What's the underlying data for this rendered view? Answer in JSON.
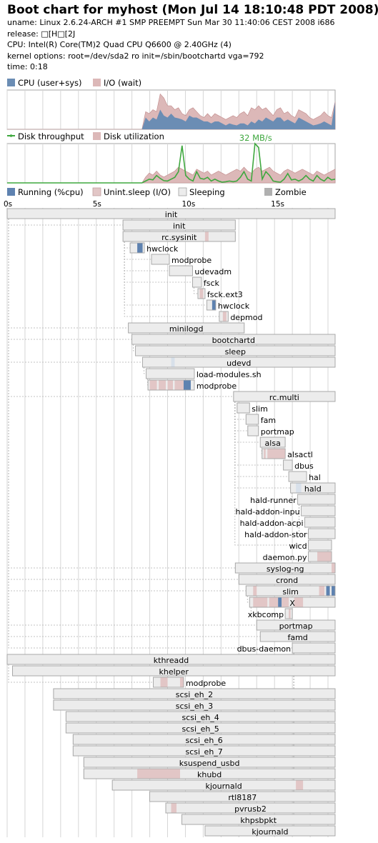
{
  "header": {
    "title": "Boot chart for myhost (Mon Jul 14 18:10:48 PDT 2008)",
    "uname": "uname: Linux 2.6.24-ARCH #1 SMP PREEMPT Sun Mar 30 11:40:06 CEST 2008 i686",
    "release": "release: □[H□[2J",
    "cpu": "CPU: Intel(R) Core(TM)2 Quad CPU    Q6600  @ 2.40GHz (4)",
    "kernel": "kernel options: root=/dev/sda2 ro init=/sbin/bootchartd vga=792",
    "time": "time: 0:18"
  },
  "colors": {
    "cpu": "#6b8db4",
    "io": "#dcb8b8",
    "throughput": "#3fa83f",
    "running": "#5e82b0",
    "uninterruptible": "#e2c6c6",
    "sleeping": "#ececec",
    "zombie": "#b0b0b0",
    "border": "#a6a6a6",
    "grid": "#d6d6d6"
  },
  "chart_data": [
    {
      "type": "area",
      "series": [
        {
          "name": "CPU (user+sys)",
          "values": [
            0,
            0,
            0,
            0,
            0,
            0,
            0,
            0,
            0,
            0,
            0,
            0,
            0,
            0,
            0,
            0,
            0,
            0,
            0,
            0,
            0,
            0,
            0,
            0,
            0,
            0,
            0,
            0,
            0,
            0,
            0,
            0,
            0,
            0,
            0,
            0,
            0,
            0,
            0.3,
            0.2,
            0.3,
            0.25,
            0.5,
            0.35,
            0.3,
            0.4,
            0.3,
            0.28,
            0.25,
            0.2,
            0.35,
            0.3,
            0.3,
            0.25,
            0.2,
            0.2,
            0.15,
            0.2,
            0.2,
            0.15,
            0.1,
            0.15,
            0.12,
            0.1,
            0.15,
            0.15,
            0.1,
            0.2,
            0.15,
            0.25,
            0.2,
            0.3,
            0.25,
            0.2,
            0.3,
            0.3,
            0.2,
            0.25,
            0.2,
            0.15,
            0.3,
            0.25,
            0.2,
            0.15,
            0.1,
            0.12,
            0.15,
            0.2,
            0.15,
            0.1,
            0.7
          ]
        },
        {
          "name": "I/O (wait)",
          "values": [
            0,
            0,
            0,
            0,
            0,
            0,
            0,
            0,
            0,
            0,
            0,
            0,
            0,
            0,
            0,
            0,
            0,
            0,
            0,
            0,
            0,
            0,
            0,
            0,
            0,
            0,
            0,
            0,
            0,
            0,
            0,
            0,
            0,
            0,
            0,
            0,
            0,
            0,
            0.45,
            0.4,
            0.5,
            0.45,
            0.9,
            0.8,
            0.6,
            0.6,
            0.5,
            0.55,
            0.4,
            0.35,
            0.5,
            0.55,
            0.45,
            0.35,
            0.3,
            0.4,
            0.3,
            0.4,
            0.35,
            0.3,
            0.25,
            0.3,
            0.35,
            0.3,
            0.4,
            0.45,
            0.35,
            0.55,
            0.5,
            0.6,
            0.5,
            0.55,
            0.45,
            0.35,
            0.5,
            0.55,
            0.4,
            0.45,
            0.35,
            0.3,
            0.5,
            0.45,
            0.4,
            0.3,
            0.25,
            0.3,
            0.35,
            0.45,
            0.35,
            0.3,
            0.7
          ]
        }
      ]
    },
    {
      "type": "line",
      "max_label": "32 MB/s",
      "series": [
        {
          "name": "Disk throughput",
          "values": [
            0,
            0,
            0,
            0,
            0,
            0,
            0,
            0,
            0,
            0,
            0,
            0,
            0,
            0,
            0,
            0,
            0,
            0,
            0,
            0,
            0,
            0,
            0,
            0,
            0,
            0,
            0,
            0,
            0,
            0,
            0,
            0,
            0,
            0,
            0,
            0,
            0,
            0,
            0.05,
            0.1,
            0.08,
            0.2,
            0.12,
            0.06,
            0.05,
            0.1,
            0.15,
            0.3,
            1.0,
            0.2,
            0.1,
            0.05,
            0.3,
            0.12,
            0.1,
            0.15,
            0.05,
            0.1,
            0.05,
            0.02,
            0.03,
            0.05,
            0.03,
            0.05,
            0.15,
            0.3,
            0.1,
            0.05,
            1.05,
            0.95,
            0.1,
            0.3,
            0.2,
            0.05,
            0.03,
            0.02,
            0.1,
            0.25,
            0.08,
            0.1,
            0.05,
            0.1,
            0.2,
            0.1,
            0.05,
            0.2,
            0.1,
            0.05,
            0.15,
            0.08,
            0.1
          ]
        },
        {
          "name": "Disk utilization",
          "values": [
            0,
            0,
            0,
            0,
            0,
            0,
            0,
            0,
            0,
            0,
            0,
            0,
            0,
            0,
            0,
            0,
            0,
            0,
            0,
            0,
            0,
            0,
            0,
            0,
            0,
            0,
            0,
            0,
            0,
            0,
            0,
            0,
            0,
            0,
            0,
            0,
            0,
            0,
            0.15,
            0.25,
            0.2,
            0.3,
            0.2,
            0.15,
            0.2,
            0.25,
            0.3,
            0.4,
            0.35,
            0.3,
            0.25,
            0.2,
            0.35,
            0.3,
            0.25,
            0.3,
            0.2,
            0.25,
            0.3,
            0.25,
            0.2,
            0.25,
            0.3,
            0.35,
            0.3,
            0.4,
            0.3,
            0.25,
            0.35,
            0.4,
            0.3,
            0.35,
            0.4,
            0.3,
            0.25,
            0.2,
            0.3,
            0.35,
            0.3,
            0.25,
            0.3,
            0.35,
            0.3,
            0.25,
            0.2,
            0.3,
            0.25,
            0.2,
            0.25,
            0.3,
            0.35
          ]
        }
      ]
    },
    {
      "type": "gantt",
      "xlabel": "",
      "xlim": [
        0,
        18.4
      ],
      "ticks": [
        {
          "v": 0,
          "label": "0s"
        },
        {
          "v": 5,
          "label": "5s"
        },
        {
          "v": 10,
          "label": "10s"
        },
        {
          "v": 15,
          "label": "15s"
        }
      ],
      "legend": [
        "Running (%cpu)",
        "Unint.sleep (I/O)",
        "Sleeping",
        "Zombie"
      ],
      "processes": [
        {
          "name": "init",
          "start": 0,
          "end": 18.4,
          "parent": -1,
          "label": "in"
        },
        {
          "name": "init",
          "start": 6.5,
          "end": 12.8,
          "parent": 0,
          "label": "in"
        },
        {
          "name": "rc.sysinit",
          "start": 6.5,
          "end": 12.8,
          "parent": 1,
          "label": "in",
          "segs": [
            [
              11.1,
              11.3,
              "io"
            ]
          ]
        },
        {
          "name": "hwclock",
          "start": 6.9,
          "end": 7.7,
          "parent": 2,
          "label": "right",
          "segs": [
            [
              7.3,
              7.6,
              "cpu"
            ]
          ]
        },
        {
          "name": "modprobe",
          "start": 8.1,
          "end": 9.1,
          "parent": 2,
          "label": "right"
        },
        {
          "name": "udevadm",
          "start": 9.1,
          "end": 10.4,
          "parent": 2,
          "label": "right"
        },
        {
          "name": "fsck",
          "start": 10.4,
          "end": 10.9,
          "parent": 2,
          "label": "right"
        },
        {
          "name": "fsck.ext3",
          "start": 10.7,
          "end": 11.1,
          "parent": 6,
          "label": "right",
          "segs": [
            [
              10.8,
              11.0,
              "io"
            ]
          ]
        },
        {
          "name": "hwclock",
          "start": 11.2,
          "end": 11.7,
          "parent": 2,
          "label": "right",
          "segs": [
            [
              11.5,
              11.7,
              "cpu"
            ]
          ]
        },
        {
          "name": "depmod",
          "start": 11.9,
          "end": 12.4,
          "parent": 2,
          "label": "right",
          "segs": [
            [
              12.1,
              12.3,
              "io"
            ]
          ]
        },
        {
          "name": "minilogd",
          "start": 6.8,
          "end": 13.3,
          "parent": 0,
          "label": "in"
        },
        {
          "name": "bootchartd",
          "start": 7.0,
          "end": 18.4,
          "parent": 0,
          "label": "in"
        },
        {
          "name": "sleep",
          "start": 7.2,
          "end": 18.4,
          "parent": 11,
          "label": "in"
        },
        {
          "name": "udevd",
          "start": 7.6,
          "end": 18.4,
          "parent": 0,
          "label": "in",
          "segs": [
            [
              9.2,
              9.4,
              "sleep2"
            ]
          ]
        },
        {
          "name": "load-modules.sh",
          "start": 7.8,
          "end": 10.5,
          "parent": 13,
          "label": "right"
        },
        {
          "name": "modprobe",
          "start": 7.9,
          "end": 10.5,
          "parent": 14,
          "label": "right",
          "segs": [
            [
              8.0,
              8.4,
              "io"
            ],
            [
              8.5,
              8.9,
              "io"
            ],
            [
              9.0,
              9.3,
              "io"
            ],
            [
              9.4,
              9.9,
              "io"
            ],
            [
              9.9,
              10.3,
              "cpu"
            ]
          ]
        },
        {
          "name": "rc.multi",
          "start": 12.7,
          "end": 18.4,
          "parent": 0,
          "label": "in"
        },
        {
          "name": "slim",
          "start": 12.9,
          "end": 13.6,
          "parent": 16,
          "label": "right"
        },
        {
          "name": "fam",
          "start": 13.4,
          "end": 14.1,
          "parent": 16,
          "label": "right"
        },
        {
          "name": "portmap",
          "start": 13.5,
          "end": 14.1,
          "parent": 16,
          "label": "right"
        },
        {
          "name": "alsa",
          "start": 14.2,
          "end": 15.6,
          "parent": 16,
          "label": "in"
        },
        {
          "name": "alsactl",
          "start": 14.3,
          "end": 15.6,
          "parent": 20,
          "label": "right",
          "segs": [
            [
              14.4,
              14.5,
              "io"
            ],
            [
              14.6,
              15.6,
              "io"
            ]
          ]
        },
        {
          "name": "dbus",
          "start": 15.5,
          "end": 16.0,
          "parent": 16,
          "label": "right"
        },
        {
          "name": "hal",
          "start": 15.8,
          "end": 16.8,
          "parent": 16,
          "label": "right"
        },
        {
          "name": "hald",
          "start": 15.9,
          "end": 18.4,
          "parent": 16,
          "label": "in",
          "segs": [
            [
              16.2,
              16.5,
              "sleep2"
            ]
          ]
        },
        {
          "name": "hald-runner",
          "start": 16.3,
          "end": 18.4,
          "parent": 24,
          "label": "left"
        },
        {
          "name": "hald-addon-inpu",
          "start": 16.5,
          "end": 18.4,
          "parent": 25,
          "label": "left"
        },
        {
          "name": "hald-addon-acpi",
          "start": 16.7,
          "end": 18.4,
          "parent": 25,
          "label": "left"
        },
        {
          "name": "hald-addon-stor",
          "start": 16.9,
          "end": 18.4,
          "parent": 25,
          "label": "left"
        },
        {
          "name": "wicd",
          "start": 16.9,
          "end": 18.2,
          "parent": 16,
          "label": "left"
        },
        {
          "name": "daemon.py",
          "start": 16.9,
          "end": 18.2,
          "parent": 29,
          "label": "left",
          "segs": [
            [
              17.4,
              18.2,
              "io"
            ]
          ]
        },
        {
          "name": "syslog-ng",
          "start": 12.8,
          "end": 18.4,
          "parent": 0,
          "label": "in",
          "segs": [
            [
              18.2,
              18.4,
              "io"
            ]
          ]
        },
        {
          "name": "crond",
          "start": 13.0,
          "end": 18.4,
          "parent": 0,
          "label": "in"
        },
        {
          "name": "slim",
          "start": 13.4,
          "end": 18.4,
          "parent": 0,
          "label": "in",
          "segs": [
            [
              13.8,
              14.0,
              "io"
            ],
            [
              17.5,
              17.8,
              "io"
            ],
            [
              17.9,
              18.1,
              "cpu"
            ],
            [
              18.2,
              18.4,
              "cpu"
            ]
          ]
        },
        {
          "name": "X",
          "start": 13.6,
          "end": 18.4,
          "parent": 33,
          "label": "in",
          "segs": [
            [
              13.8,
              14.6,
              "io"
            ],
            [
              14.7,
              15.2,
              "io"
            ],
            [
              15.2,
              15.4,
              "cpu"
            ],
            [
              15.4,
              15.8,
              "io"
            ],
            [
              16.1,
              16.6,
              "io"
            ]
          ]
        },
        {
          "name": "xkbcomp",
          "start": 15.6,
          "end": 16.0,
          "parent": 34,
          "label": "left",
          "segs": [
            [
              15.8,
              15.9,
              "io"
            ]
          ]
        },
        {
          "name": "portmap",
          "start": 14.0,
          "end": 18.4,
          "parent": 0,
          "label": "in"
        },
        {
          "name": "famd",
          "start": 14.2,
          "end": 18.4,
          "parent": 0,
          "label": "in"
        },
        {
          "name": "dbus-daemon",
          "start": 16.0,
          "end": 18.4,
          "parent": 0,
          "label": "left"
        },
        {
          "name": "kthreadd",
          "start": 0,
          "end": 18.4,
          "parent": -1,
          "label": "in"
        },
        {
          "name": "khelper",
          "start": 0.3,
          "end": 18.4,
          "parent": 38,
          "label": "in"
        },
        {
          "name": "modprobe",
          "start": 8.2,
          "end": 9.9,
          "parent": 39,
          "label": "right",
          "segs": [
            [
              8.6,
              9.0,
              "io"
            ],
            [
              9.7,
              9.9,
              "io"
            ]
          ]
        },
        {
          "name": "scsi_eh_2",
          "start": 2.6,
          "end": 18.4,
          "parent": 38,
          "label": "in"
        },
        {
          "name": "scsi_eh_3",
          "start": 2.6,
          "end": 18.4,
          "parent": 38,
          "label": "in"
        },
        {
          "name": "scsi_eh_4",
          "start": 3.3,
          "end": 18.4,
          "parent": 38,
          "label": "in"
        },
        {
          "name": "scsi_eh_5",
          "start": 3.3,
          "end": 18.4,
          "parent": 38,
          "label": "in"
        },
        {
          "name": "scsi_eh_6",
          "start": 3.7,
          "end": 18.4,
          "parent": 38,
          "label": "in"
        },
        {
          "name": "scsi_eh_7",
          "start": 3.7,
          "end": 18.4,
          "parent": 38,
          "label": "in"
        },
        {
          "name": "ksuspend_usbd",
          "start": 4.3,
          "end": 18.4,
          "parent": 38,
          "label": "in"
        },
        {
          "name": "khubd",
          "start": 4.3,
          "end": 18.4,
          "parent": 38,
          "label": "in",
          "segs": [
            [
              7.3,
              9.7,
              "io"
            ]
          ]
        },
        {
          "name": "kjournald",
          "start": 5.9,
          "end": 18.4,
          "parent": 38,
          "label": "in",
          "segs": [
            [
              16.2,
              16.6,
              "io"
            ]
          ]
        },
        {
          "name": "rtl8187",
          "start": 8.0,
          "end": 18.4,
          "parent": 38,
          "label": "in"
        },
        {
          "name": "pvrusb2",
          "start": 8.9,
          "end": 18.4,
          "parent": 38,
          "label": "in",
          "segs": [
            [
              9.2,
              9.5,
              "io"
            ]
          ]
        },
        {
          "name": "khpsbpkt",
          "start": 9.8,
          "end": 18.4,
          "parent": 38,
          "label": "in"
        },
        {
          "name": "kjournald",
          "start": 11.1,
          "end": 18.4,
          "parent": 38,
          "label": "in"
        }
      ]
    }
  ]
}
